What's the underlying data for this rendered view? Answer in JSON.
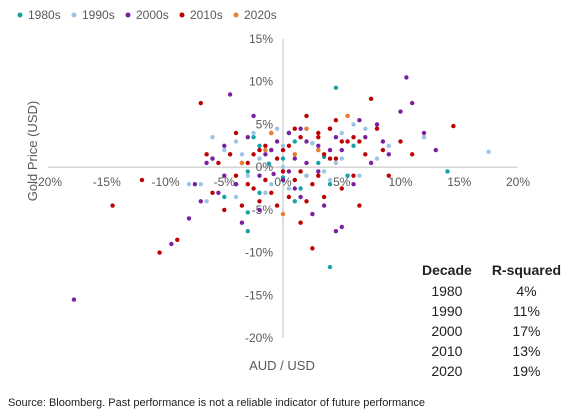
{
  "chart_data": {
    "type": "scatter",
    "xlabel": "AUD / USD",
    "ylabel": "Gold Price (USD)",
    "xlim": [
      -0.2,
      0.2
    ],
    "ylim": [
      -0.2,
      0.15
    ],
    "x_ticks": [
      "-20%",
      "-15%",
      "-10%",
      "-5%",
      "0%",
      "5%",
      "10%",
      "15%",
      "20%"
    ],
    "y_ticks": [
      "15%",
      "10%",
      "5%",
      "0%",
      "-5%",
      "-10%",
      "-15%",
      "-20%"
    ],
    "legend_position": "top-left",
    "series": [
      {
        "name": "1980s",
        "color": "#17a2a8",
        "points": [
          [
            0.045,
            0.093
          ],
          [
            0.02,
            0.045
          ],
          [
            0.01,
            0.03
          ],
          [
            -0.02,
            0.025
          ],
          [
            -0.01,
            0.02
          ],
          [
            0.0,
            0.01
          ],
          [
            0.03,
            0.005
          ],
          [
            -0.03,
            -0.005
          ],
          [
            0.02,
            -0.01
          ],
          [
            -0.015,
            -0.015
          ],
          [
            0.04,
            -0.02
          ],
          [
            -0.02,
            -0.03
          ],
          [
            -0.03,
            -0.053
          ],
          [
            -0.05,
            -0.035
          ],
          [
            -0.03,
            -0.075
          ],
          [
            0.04,
            -0.117
          ],
          [
            -0.06,
            0.01
          ],
          [
            0.005,
            0.04
          ],
          [
            0.025,
            0.028
          ],
          [
            -0.04,
            -0.02
          ],
          [
            0.015,
            -0.025
          ],
          [
            0.06,
            0.025
          ],
          [
            0.14,
            -0.005
          ],
          [
            -0.012,
            0.004
          ],
          [
            0.035,
            0.012
          ],
          [
            -0.045,
            0.015
          ],
          [
            0.01,
            -0.04
          ],
          [
            -0.025,
            0.035
          ],
          [
            0.055,
            -0.01
          ],
          [
            0.0,
            -0.012
          ]
        ]
      },
      {
        "name": "1990s",
        "color": "#9dc3e6",
        "points": [
          [
            -0.05,
            0.02
          ],
          [
            -0.04,
            0.03
          ],
          [
            -0.03,
            -0.01
          ],
          [
            -0.02,
            0.01
          ],
          [
            -0.01,
            -0.02
          ],
          [
            0.0,
            0.0
          ],
          [
            0.01,
            0.015
          ],
          [
            0.02,
            -0.01
          ],
          [
            0.03,
            0.02
          ],
          [
            0.04,
            -0.015
          ],
          [
            0.05,
            0.01
          ],
          [
            0.06,
            0.05
          ],
          [
            0.07,
            0.045
          ],
          [
            0.09,
            0.025
          ],
          [
            0.175,
            0.018
          ],
          [
            0.12,
            0.035
          ],
          [
            -0.07,
            -0.02
          ],
          [
            -0.065,
            -0.04
          ],
          [
            -0.04,
            -0.035
          ],
          [
            -0.015,
            -0.03
          ],
          [
            0.015,
            0.035
          ],
          [
            0.025,
            0.028
          ],
          [
            -0.055,
            0.005
          ],
          [
            0.035,
            -0.005
          ],
          [
            -0.005,
            0.045
          ],
          [
            0.045,
            0.005
          ],
          [
            -0.08,
            -0.02
          ],
          [
            0.08,
            0.01
          ],
          [
            0.005,
            -0.025
          ],
          [
            -0.025,
            0.04
          ],
          [
            0.065,
            -0.01
          ],
          [
            -0.035,
            0.015
          ],
          [
            0.01,
            -0.015
          ],
          [
            0.0,
            0.025
          ],
          [
            0.05,
            0.04
          ],
          [
            -0.06,
            0.035
          ]
        ]
      },
      {
        "name": "2000s",
        "color": "#7b1fa2",
        "points": [
          [
            -0.178,
            -0.155
          ],
          [
            -0.095,
            -0.09
          ],
          [
            -0.08,
            -0.06
          ],
          [
            -0.07,
            -0.04
          ],
          [
            -0.06,
            0.01
          ],
          [
            -0.05,
            0.025
          ],
          [
            -0.045,
            0.085
          ],
          [
            -0.04,
            -0.02
          ],
          [
            -0.03,
            0.035
          ],
          [
            -0.02,
            -0.01
          ],
          [
            -0.01,
            0.02
          ],
          [
            0.0,
            -0.015
          ],
          [
            0.01,
            0.01
          ],
          [
            0.02,
            0.03
          ],
          [
            0.03,
            -0.005
          ],
          [
            0.04,
            0.045
          ],
          [
            0.05,
            0.02
          ],
          [
            0.06,
            -0.02
          ],
          [
            0.07,
            0.035
          ],
          [
            0.08,
            0.05
          ],
          [
            0.09,
            0.015
          ],
          [
            0.1,
            0.065
          ],
          [
            0.105,
            0.105
          ],
          [
            0.11,
            0.075
          ],
          [
            0.12,
            0.04
          ],
          [
            0.13,
            0.02
          ],
          [
            0.045,
            -0.075
          ],
          [
            0.05,
            -0.07
          ],
          [
            -0.035,
            -0.065
          ],
          [
            -0.02,
            -0.05
          ],
          [
            0.015,
            -0.035
          ],
          [
            0.025,
            -0.055
          ],
          [
            0.035,
            -0.045
          ],
          [
            -0.055,
            -0.03
          ],
          [
            -0.065,
            0.005
          ],
          [
            0.055,
            0.06
          ],
          [
            0.065,
            0.055
          ],
          [
            -0.025,
            0.06
          ],
          [
            0.005,
            0.04
          ],
          [
            0.015,
            0.045
          ],
          [
            -0.005,
            0.03
          ],
          [
            0.04,
            0.02
          ],
          [
            0.045,
            0.035
          ],
          [
            -0.015,
            0.015
          ],
          [
            0.005,
            -0.005
          ],
          [
            0.02,
            0.005
          ],
          [
            -0.035,
            0.005
          ],
          [
            0.075,
            0.005
          ],
          [
            0.085,
            0.03
          ],
          [
            -0.075,
            -0.02
          ],
          [
            -0.05,
            -0.01
          ],
          [
            0.03,
            0.025
          ],
          [
            0.01,
            -0.025
          ],
          [
            -0.008,
            -0.008
          ]
        ]
      },
      {
        "name": "2010s",
        "color": "#c00000",
        "points": [
          [
            -0.145,
            -0.045
          ],
          [
            -0.12,
            -0.015
          ],
          [
            -0.105,
            -0.1
          ],
          [
            -0.09,
            -0.085
          ],
          [
            -0.07,
            0.075
          ],
          [
            -0.06,
            -0.03
          ],
          [
            -0.05,
            -0.05
          ],
          [
            -0.04,
            0.04
          ],
          [
            -0.03,
            -0.02
          ],
          [
            -0.025,
            0.015
          ],
          [
            -0.02,
            -0.04
          ],
          [
            -0.015,
            0.025
          ],
          [
            -0.01,
            -0.03
          ],
          [
            -0.005,
            0.01
          ],
          [
            0.0,
            -0.005
          ],
          [
            0.005,
            0.025
          ],
          [
            0.01,
            -0.015
          ],
          [
            0.015,
            0.035
          ],
          [
            0.02,
            0.06
          ],
          [
            0.025,
            -0.02
          ],
          [
            0.03,
            0.04
          ],
          [
            0.035,
            -0.035
          ],
          [
            0.04,
            0.01
          ],
          [
            0.045,
            0.055
          ],
          [
            0.05,
            -0.025
          ],
          [
            0.055,
            0.03
          ],
          [
            0.06,
            0.035
          ],
          [
            0.065,
            -0.045
          ],
          [
            0.07,
            0.015
          ],
          [
            0.075,
            0.08
          ],
          [
            0.08,
            0.045
          ],
          [
            0.085,
            0.02
          ],
          [
            0.09,
            -0.01
          ],
          [
            0.1,
            0.03
          ],
          [
            0.11,
            0.015
          ],
          [
            0.145,
            0.048
          ],
          [
            -0.035,
            -0.045
          ],
          [
            -0.005,
            -0.045
          ],
          [
            0.025,
            -0.095
          ],
          [
            0.015,
            -0.065
          ],
          [
            -0.045,
            0.015
          ],
          [
            -0.055,
            0.005
          ],
          [
            -0.01,
            0.04
          ],
          [
            0.005,
            -0.035
          ],
          [
            0.035,
            0.015
          ],
          [
            0.01,
            0.045
          ],
          [
            0.03,
            -0.01
          ],
          [
            0.04,
            0.045
          ],
          [
            -0.02,
            0.02
          ],
          [
            0.045,
            0.01
          ],
          [
            -0.03,
            0.005
          ],
          [
            0.02,
            -0.04
          ],
          [
            0.05,
            0.03
          ],
          [
            -0.065,
            0.015
          ],
          [
            0.065,
            0.03
          ],
          [
            0.0,
            0.02
          ],
          [
            -0.015,
            -0.015
          ],
          [
            0.015,
            -0.005
          ],
          [
            0.06,
            -0.01
          ],
          [
            -0.04,
            -0.01
          ],
          [
            0.03,
            0.035
          ],
          [
            -0.025,
            -0.025
          ]
        ]
      },
      {
        "name": "2020s",
        "color": "#ed7d31",
        "points": [
          [
            0.055,
            0.06
          ],
          [
            0.02,
            0.045
          ],
          [
            -0.01,
            0.04
          ],
          [
            -0.035,
            0.005
          ],
          [
            0.0,
            -0.055
          ],
          [
            0.03,
            0.02
          ],
          [
            -0.015,
            0.02
          ],
          [
            0.01,
            0.015
          ]
        ]
      }
    ],
    "r_squared_table": {
      "headers": [
        "Decade",
        "R-squared"
      ],
      "rows": [
        [
          "1980",
          "4%"
        ],
        [
          "1990",
          "11%"
        ],
        [
          "2000",
          "17%"
        ],
        [
          "2010",
          "13%"
        ],
        [
          "2020",
          "19%"
        ]
      ]
    }
  },
  "source_note": "Source: Bloomberg.  Past performance is not a reliable indicator of future performance"
}
